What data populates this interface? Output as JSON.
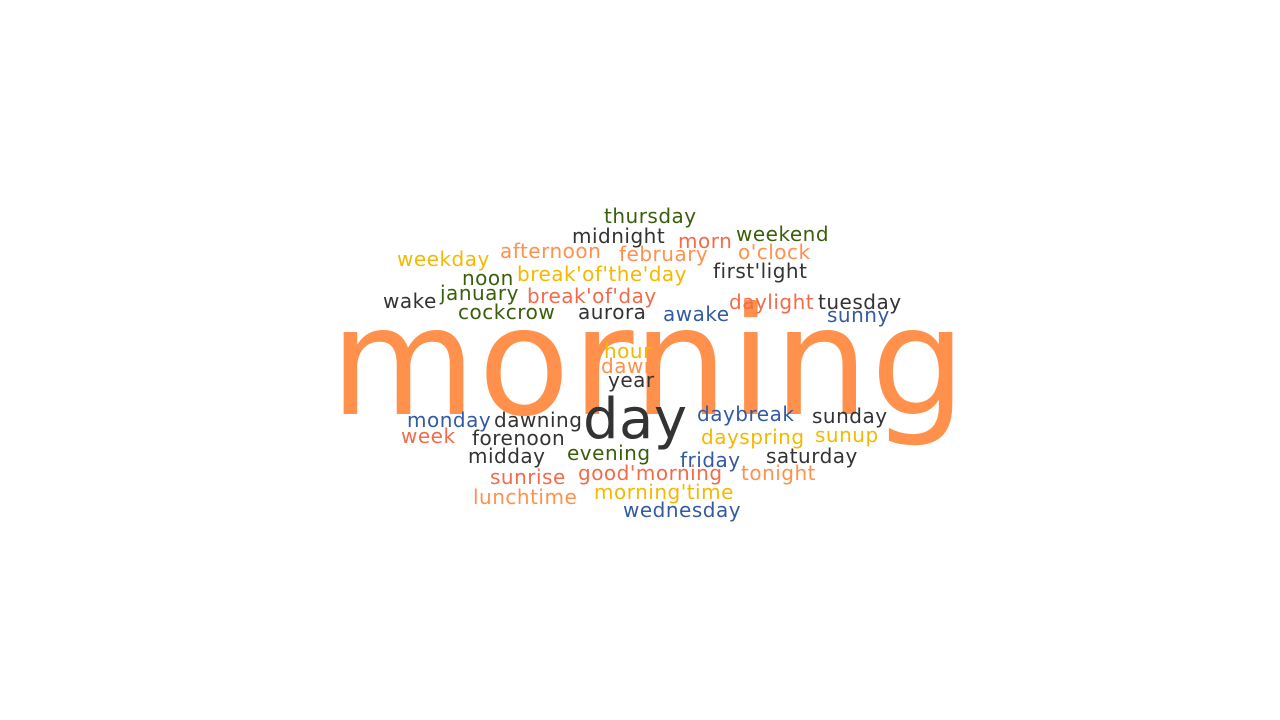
{
  "colors": {
    "orange": "#ff914d",
    "coral": "#f26b4a",
    "gold": "#f5b800",
    "green": "#3a5f0b",
    "blue": "#345ba1",
    "dark": "#333333"
  },
  "words": [
    {
      "text": "morning",
      "color": "orange"
    },
    {
      "text": "day",
      "color": "dark"
    },
    {
      "text": "thursday",
      "color": "green"
    },
    {
      "text": "midnight",
      "color": "dark"
    },
    {
      "text": "morn",
      "color": "coral"
    },
    {
      "text": "weekend",
      "color": "green"
    },
    {
      "text": "weekday",
      "color": "gold"
    },
    {
      "text": "afternoon",
      "color": "orange"
    },
    {
      "text": "february",
      "color": "orange"
    },
    {
      "text": "o'clock",
      "color": "orange"
    },
    {
      "text": "noon",
      "color": "green"
    },
    {
      "text": "break'of'the'day",
      "color": "gold"
    },
    {
      "text": "first'light",
      "color": "dark"
    },
    {
      "text": "wake",
      "color": "dark"
    },
    {
      "text": "january",
      "color": "green"
    },
    {
      "text": "break'of'day",
      "color": "coral"
    },
    {
      "text": "daylight",
      "color": "coral"
    },
    {
      "text": "tuesday",
      "color": "dark"
    },
    {
      "text": "cockcrow",
      "color": "green"
    },
    {
      "text": "aurora",
      "color": "dark"
    },
    {
      "text": "awake",
      "color": "blue"
    },
    {
      "text": "sunny",
      "color": "blue"
    },
    {
      "text": "hour",
      "color": "gold"
    },
    {
      "text": "dawn",
      "color": "orange"
    },
    {
      "text": "year",
      "color": "dark"
    },
    {
      "text": "monday",
      "color": "blue"
    },
    {
      "text": "dawning",
      "color": "dark"
    },
    {
      "text": "daybreak",
      "color": "blue"
    },
    {
      "text": "sunday",
      "color": "dark"
    },
    {
      "text": "week",
      "color": "coral"
    },
    {
      "text": "forenoon",
      "color": "dark"
    },
    {
      "text": "dayspring",
      "color": "gold"
    },
    {
      "text": "sunup",
      "color": "gold"
    },
    {
      "text": "midday",
      "color": "dark"
    },
    {
      "text": "evening",
      "color": "green"
    },
    {
      "text": "friday",
      "color": "blue"
    },
    {
      "text": "saturday",
      "color": "dark"
    },
    {
      "text": "sunrise",
      "color": "coral"
    },
    {
      "text": "good'morning",
      "color": "coral"
    },
    {
      "text": "tonight",
      "color": "orange"
    },
    {
      "text": "lunchtime",
      "color": "orange"
    },
    {
      "text": "morning'time",
      "color": "gold"
    },
    {
      "text": "wednesday",
      "color": "blue"
    }
  ]
}
